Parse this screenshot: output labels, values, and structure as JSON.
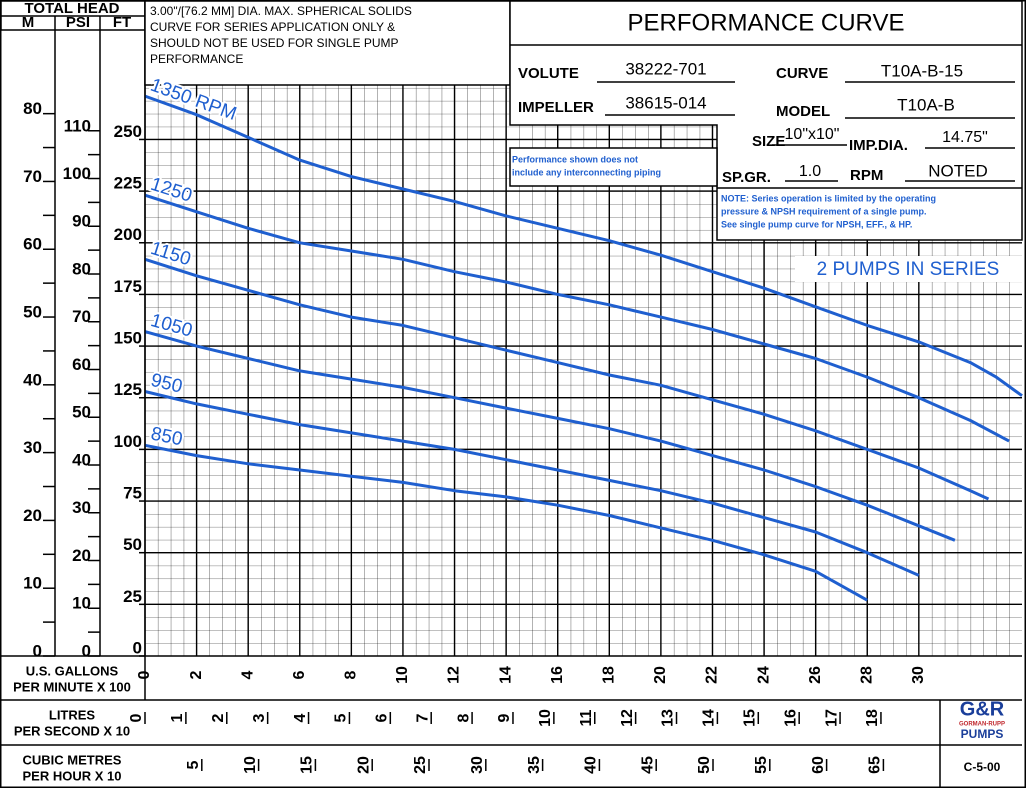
{
  "chart_data": {
    "type": "line",
    "title": "PERFORMANCE CURVE",
    "ylabel": "TOTAL HEAD",
    "y_units": "FT",
    "ylim": [
      0,
      272
    ],
    "yticks": [
      0,
      25,
      50,
      75,
      100,
      125,
      150,
      175,
      200,
      225,
      250
    ],
    "m_axis": {
      "label": "M",
      "lim": [
        0,
        82.9
      ],
      "ticks": [
        0,
        10,
        20,
        30,
        40,
        50,
        60,
        70,
        80
      ],
      "minor_ticks": [
        5,
        15,
        25,
        35,
        45,
        55,
        65,
        75
      ]
    },
    "psi_axis": {
      "label": "PSI",
      "lim": [
        0,
        117.7
      ],
      "ticks": [
        0,
        10,
        20,
        30,
        40,
        50,
        60,
        70,
        80,
        90,
        100,
        110
      ],
      "minor_ticks": [
        5,
        15,
        25,
        35,
        45,
        55,
        65,
        75,
        85,
        95,
        105
      ]
    },
    "xlabel": [
      "U.S. GALLONS",
      "PER MINUTE  X 100"
    ],
    "xlim": [
      0,
      34
    ],
    "xticks": [
      0,
      2,
      4,
      6,
      8,
      10,
      12,
      14,
      16,
      18,
      20,
      22,
      24,
      26,
      28,
      30
    ],
    "lps_axis": {
      "label": [
        "LITRES",
        "PER SECOND  X 10"
      ],
      "lim": [
        0,
        21.45
      ],
      "ticks": [
        0,
        1,
        2,
        3,
        4,
        5,
        6,
        7,
        8,
        9,
        10,
        11,
        12,
        13,
        14,
        15,
        16,
        17,
        18
      ]
    },
    "m3h_axis": {
      "label": [
        "CUBIC METRES",
        "PER HOUR X 10"
      ],
      "lim": [
        0,
        77.2
      ],
      "ticks": [
        5,
        10,
        15,
        20,
        25,
        30,
        35,
        40,
        45,
        50,
        55,
        60,
        65
      ]
    },
    "grid": true,
    "series": [
      {
        "name": "1350 RPM",
        "color": "#1f5fcf",
        "x": [
          0,
          2,
          4,
          6,
          8,
          10,
          12,
          14,
          16,
          18,
          20,
          22,
          24,
          26,
          28,
          30,
          32,
          33,
          34
        ],
        "values": [
          271,
          262,
          251,
          240,
          232,
          226,
          220,
          213,
          207,
          201,
          194,
          186,
          178,
          169,
          160,
          152,
          142,
          135,
          126
        ]
      },
      {
        "name": "1250",
        "color": "#1f5fcf",
        "x": [
          0,
          2,
          4,
          6,
          8,
          10,
          12,
          14,
          16,
          18,
          20,
          22,
          24,
          26,
          28,
          30,
          32,
          33.5
        ],
        "values": [
          223,
          215,
          207,
          200,
          196,
          192,
          186,
          181,
          175,
          170,
          164,
          158,
          151,
          144,
          135,
          125,
          114,
          104
        ]
      },
      {
        "name": "1150",
        "color": "#1f5fcf",
        "x": [
          0,
          2,
          4,
          6,
          8,
          10,
          12,
          14,
          16,
          18,
          20,
          22,
          24,
          26,
          28,
          30,
          32,
          32.7
        ],
        "values": [
          192,
          184,
          177,
          170,
          164,
          160,
          154,
          148,
          142,
          136,
          131,
          124,
          117,
          109,
          100,
          91,
          80,
          76
        ]
      },
      {
        "name": "1050",
        "color": "#1f5fcf",
        "x": [
          0,
          2,
          4,
          6,
          8,
          10,
          12,
          14,
          16,
          18,
          20,
          22,
          24,
          26,
          28,
          30,
          31.4
        ],
        "values": [
          157,
          150,
          144,
          138,
          134,
          130,
          125,
          120,
          115,
          110,
          104,
          97,
          90,
          82,
          73,
          63,
          56
        ]
      },
      {
        "name": "950",
        "color": "#1f5fcf",
        "x": [
          0,
          2,
          4,
          6,
          8,
          10,
          12,
          14,
          16,
          18,
          20,
          22,
          24,
          26,
          28,
          30
        ],
        "values": [
          128,
          122,
          117,
          112,
          108,
          104,
          100,
          95,
          90,
          85,
          80,
          74,
          67,
          60,
          50,
          39
        ]
      },
      {
        "name": "850",
        "color": "#1f5fcf",
        "x": [
          0,
          2,
          4,
          6,
          8,
          10,
          12,
          14,
          16,
          18,
          20,
          22,
          24,
          26,
          28
        ],
        "values": [
          102,
          97,
          93,
          90,
          87,
          84,
          80,
          77,
          73,
          68,
          62,
          56,
          49,
          41,
          27
        ]
      }
    ]
  },
  "note_box": [
    "3.00\"/[76.2 MM] DIA. MAX. SPHERICAL SOLIDS",
    "CURVE FOR SERIES APPLICATION ONLY &",
    "SHOULD NOT BE USED FOR SINGLE PUMP",
    "PERFORMANCE"
  ],
  "specs": {
    "volute": {
      "label": "VOLUTE",
      "value": "38222-701"
    },
    "curve": {
      "label": "CURVE",
      "value": "T10A-B-15"
    },
    "impeller": {
      "label": "IMPELLER",
      "value": "38615-014"
    },
    "model": {
      "label": "MODEL",
      "value": "T10A-B"
    },
    "size": {
      "label": "SIZE",
      "value": "10\"x10\""
    },
    "imp_dia": {
      "label": "IMP.DIA.",
      "value": "14.75\""
    },
    "sp_gr": {
      "label": "SP.GR.",
      "value": "1.0"
    },
    "rpm": {
      "label": "RPM",
      "value": "NOTED"
    }
  },
  "piping_note": [
    "Performance shown does not",
    "include any interconnecting piping"
  ],
  "series_note": [
    "NOTE: Series operation is limited by the operating",
    "pressure & NPSH requirement of a single pump.",
    "See single pump curve for NPSH, EFF., & HP."
  ],
  "config": "2 PUMPS IN SERIES",
  "logo": [
    "G&R",
    "GORMAN-RUPP",
    "PUMPS"
  ],
  "drawing_no": "C-5-00"
}
